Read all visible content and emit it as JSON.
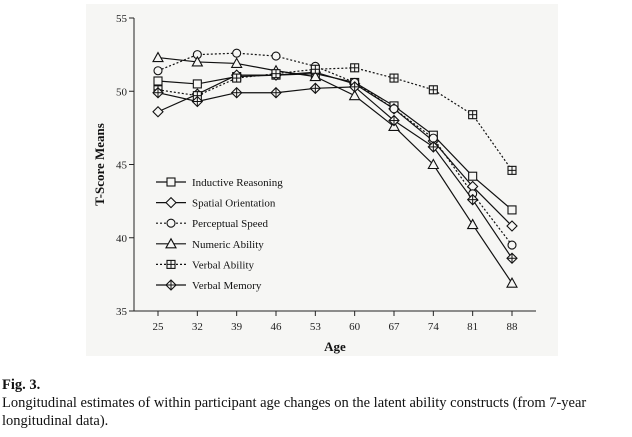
{
  "chart_data": {
    "type": "line",
    "xlabel": "Age",
    "ylabel": "T-Score Means",
    "x": [
      25,
      32,
      39,
      46,
      53,
      60,
      67,
      74,
      81,
      88
    ],
    "xticks": [
      "25",
      "32",
      "39",
      "46",
      "53",
      "60",
      "67",
      "74",
      "81",
      "88"
    ],
    "ylim": [
      35,
      55
    ],
    "yticks": [
      "35",
      "40",
      "45",
      "50",
      "55"
    ],
    "grid": false,
    "legend_position": "left-lower",
    "series": [
      {
        "name": "Inductive Reasoning",
        "marker": "square",
        "dash": "solid",
        "values": [
          50.7,
          50.5,
          51.0,
          51.1,
          51.2,
          50.6,
          49.0,
          47.0,
          44.2,
          41.9
        ]
      },
      {
        "name": "Spatial Orientation",
        "marker": "diamond",
        "dash": "solid",
        "values": [
          48.6,
          49.8,
          51.1,
          51.1,
          51.3,
          50.5,
          48.8,
          46.6,
          43.5,
          40.8
        ]
      },
      {
        "name": "Perceptual Speed",
        "marker": "circle",
        "dash": "dotted",
        "values": [
          51.4,
          52.5,
          52.6,
          52.4,
          51.7,
          50.6,
          48.8,
          46.8,
          43.0,
          39.5
        ]
      },
      {
        "name": "Numeric Ability",
        "marker": "triangle",
        "dash": "solid",
        "values": [
          52.3,
          52.0,
          51.9,
          51.4,
          51.0,
          49.7,
          47.6,
          45.0,
          40.9,
          36.9
        ]
      },
      {
        "name": "Verbal Ability",
        "marker": "square-plus",
        "dash": "dotted",
        "values": [
          50.1,
          49.7,
          50.9,
          51.2,
          51.5,
          51.6,
          50.9,
          50.1,
          48.4,
          44.6
        ]
      },
      {
        "name": "Verbal Memory",
        "marker": "diamond-plus",
        "dash": "solid",
        "values": [
          49.9,
          49.3,
          49.9,
          49.9,
          50.2,
          50.3,
          48.0,
          46.2,
          42.6,
          38.6
        ]
      }
    ]
  },
  "caption": {
    "label": "Fig. 3.",
    "text": "Longitudinal estimates of within participant age changes on the latent ability constructs (from 7-year longitudinal data)."
  }
}
